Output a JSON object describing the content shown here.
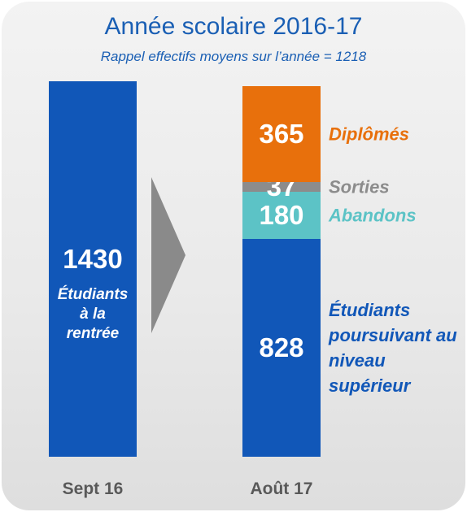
{
  "chart_data": {
    "type": "stacked_bar",
    "title": "Année scolaire 2016-17",
    "subtitle": "Rappel effectifs moyens sur l’année = 1218",
    "categories": [
      "Sept 16",
      "Août 17"
    ],
    "series": [
      {
        "name": "Étudiants à la rentrée",
        "color": "#1157b8",
        "values": [
          1430,
          null
        ]
      },
      {
        "name": "Étudiants poursuivant au niveau supérieur",
        "color": "#1157b8",
        "values": [
          null,
          828
        ]
      },
      {
        "name": "Abandons",
        "color": "#5cc3c6",
        "values": [
          null,
          180
        ]
      },
      {
        "name": "Sorties",
        "color": "#8c8c8c",
        "values": [
          null,
          37
        ]
      },
      {
        "name": "Diplômés",
        "color": "#e8700c",
        "values": [
          null,
          365
        ]
      }
    ]
  }
}
